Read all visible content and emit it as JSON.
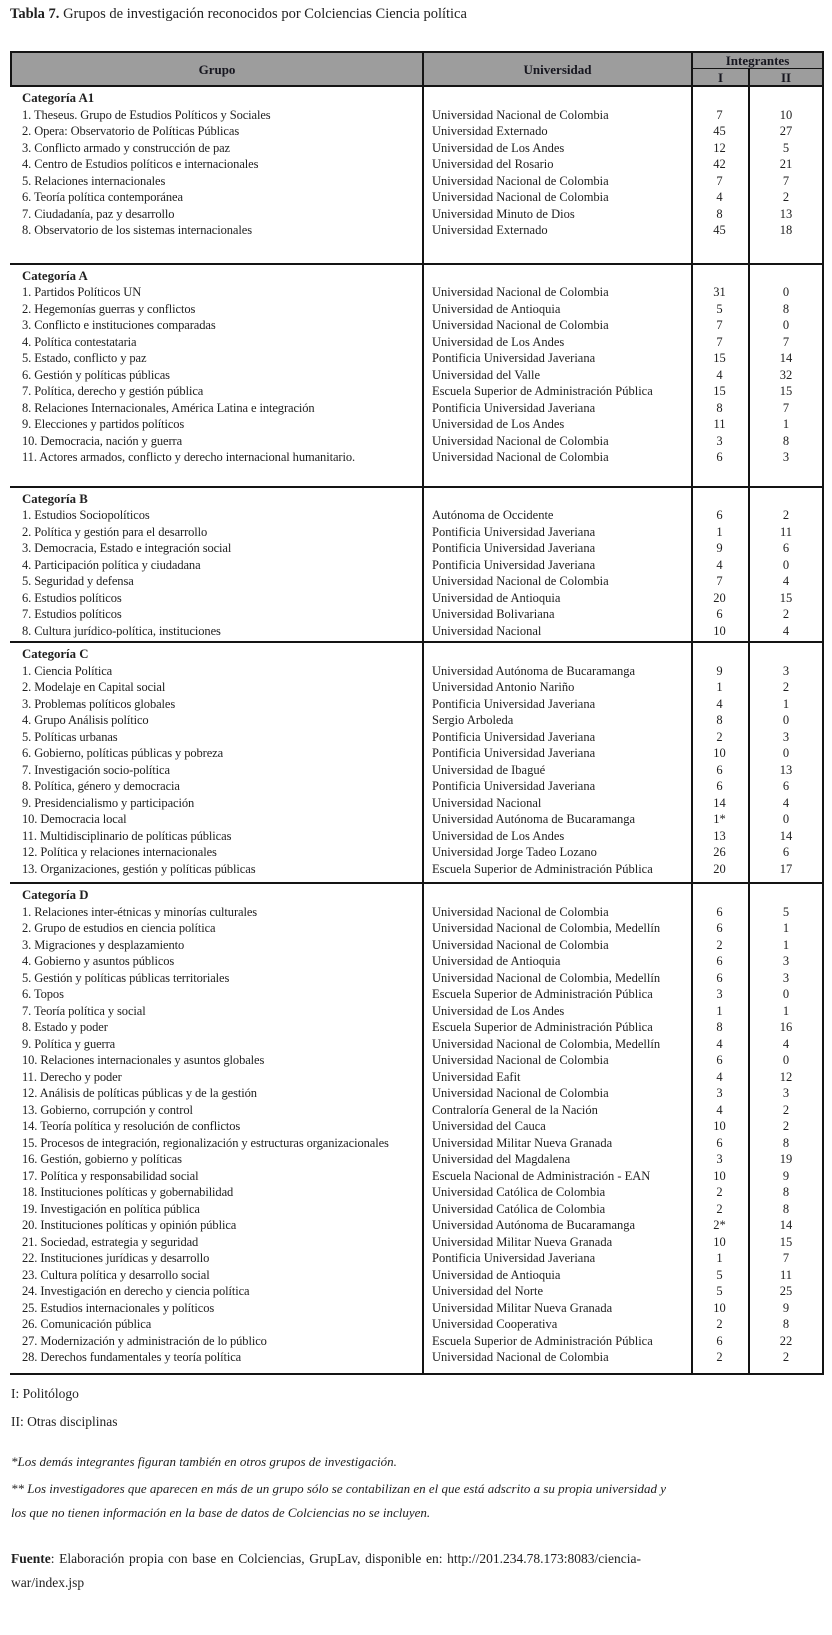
{
  "title": {
    "label": "Tabla 7.",
    "text": " Grupos de investigación reconocidos por Colciencias Ciencia política"
  },
  "table": {
    "headers": {
      "grupo": "Grupo",
      "universidad": "Universidad",
      "integrantes": "Integrantes",
      "col_i": "I",
      "col_ii": "II"
    },
    "sections": [
      {
        "name": "Categoría A1",
        "rows": [
          [
            "1.  Theseus. Grupo de Estudios Políticos y Sociales",
            "Universidad Nacional de Colombia",
            "7",
            "10"
          ],
          [
            "2. Opera: Observatorio de Políticas Públicas",
            "Universidad Externado",
            "45",
            "27"
          ],
          [
            "3. Conflicto armado y construcción de paz",
            "Universidad de Los Andes",
            "12",
            "5"
          ],
          [
            "4. Centro de Estudios políticos e internacionales",
            "Universidad del Rosario",
            "42",
            "21"
          ],
          [
            "5. Relaciones internacionales",
            "Universidad Nacional de Colombia",
            "7",
            "7"
          ],
          [
            "6. Teoría política contemporánea",
            "Universidad Nacional de Colombia",
            "4",
            "2"
          ],
          [
            "7. Ciudadanía, paz y desarrollo",
            "Universidad Minuto de Dios",
            "8",
            "13"
          ],
          [
            "8. Observatorio de los sistemas internacionales",
            "Universidad Externado",
            "45",
            "18"
          ]
        ]
      },
      {
        "name": "Categoría A",
        "rows": [
          [
            "1. Partidos Políticos UN",
            "Universidad Nacional de Colombia",
            "31",
            "0"
          ],
          [
            "2. Hegemonías guerras y conflictos",
            "Universidad de Antioquia",
            "5",
            "8"
          ],
          [
            "3. Conflicto e instituciones comparadas",
            "Universidad Nacional de Colombia",
            "7",
            "0"
          ],
          [
            "4. Política contestataria",
            "Universidad de Los Andes",
            "7",
            "7"
          ],
          [
            "5. Estado, conflicto y paz",
            "Pontificia Universidad Javeriana",
            "15",
            "14"
          ],
          [
            "6. Gestión y políticas públicas",
            "Universidad del Valle",
            "4",
            "32"
          ],
          [
            "7. Política, derecho y gestión pública",
            "Escuela Superior de Administración Pública",
            "15",
            "15"
          ],
          [
            "8. Relaciones Internacionales, América Latina e integración",
            "Pontificia Universidad Javeriana",
            "8",
            "7"
          ],
          [
            "9. Elecciones y partidos políticos",
            "Universidad de Los Andes",
            "11",
            "1"
          ],
          [
            "10. Democracia, nación y guerra",
            "Universidad Nacional de Colombia",
            "3",
            "8"
          ],
          [
            "11. Actores armados, conflicto y derecho internacional humanitario.",
            "Universidad Nacional de Colombia",
            "6",
            "3"
          ]
        ]
      },
      {
        "name": "Categoría B",
        "rows": [
          [
            "1. Estudios Sociopolíticos",
            "Autónoma de Occidente",
            "6",
            "2"
          ],
          [
            "2. Política y gestión para el desarrollo",
            "Pontificia Universidad Javeriana",
            "1",
            "11"
          ],
          [
            "3. Democracia, Estado e integración social",
            "Pontificia Universidad Javeriana",
            "9",
            "6"
          ],
          [
            "4. Participación política y ciudadana",
            "Pontificia Universidad Javeriana",
            "4",
            "0"
          ],
          [
            "5. Seguridad y defensa",
            "Universidad Nacional de Colombia",
            "7",
            "4"
          ],
          [
            "6. Estudios políticos",
            "Universidad de Antioquia",
            "20",
            "15"
          ],
          [
            "7. Estudios políticos",
            "Universidad Bolivariana",
            "6",
            "2"
          ],
          [
            "8. Cultura jurídico-política, instituciones",
            "Universidad Nacional",
            "10",
            "4"
          ]
        ]
      },
      {
        "name": "Categoría C",
        "rows": [
          [
            "1. Ciencia Política",
            "Universidad Autónoma de Bucaramanga",
            "9",
            "3"
          ],
          [
            "2. Modelaje en Capital social",
            "Universidad Antonio Nariño",
            "1",
            "2"
          ],
          [
            "3. Problemas políticos globales",
            "Pontificia Universidad Javeriana",
            "4",
            "1"
          ],
          [
            "4. Grupo Análisis político",
            "Sergio Arboleda",
            "8",
            "0"
          ],
          [
            "5. Políticas urbanas",
            "Pontificia Universidad Javeriana",
            "2",
            "3"
          ],
          [
            "6. Gobierno, políticas públicas y pobreza",
            "Pontificia Universidad Javeriana",
            "10",
            "0"
          ],
          [
            "7. Investigación socio-política",
            "Universidad de Ibagué",
            "6",
            "13"
          ],
          [
            "8. Política, género y democracia",
            "Pontificia Universidad Javeriana",
            "6",
            "6"
          ],
          [
            "9. Presidencialismo y participación",
            "Universidad Nacional",
            "14",
            "4"
          ],
          [
            "10. Democracia local",
            "Universidad Autónoma de Bucaramanga",
            "1*",
            "0"
          ],
          [
            "11. Multidisciplinario de políticas públicas",
            "Universidad de Los Andes",
            "13",
            "14"
          ],
          [
            "12. Política y relaciones internacionales",
            "Universidad Jorge Tadeo Lozano",
            "26",
            "6"
          ],
          [
            "13. Organizaciones, gestión y políticas públicas",
            "Escuela Superior de Administración Pública",
            "20",
            "17"
          ]
        ]
      },
      {
        "name": "Categoría D",
        "rows": [
          [
            "1. Relaciones inter-étnicas y minorías culturales",
            "Universidad Nacional de Colombia",
            "6",
            "5"
          ],
          [
            "2. Grupo de estudios en ciencia política",
            "Universidad Nacional de Colombia, Medellín",
            "6",
            "1"
          ],
          [
            "3. Migraciones y desplazamiento",
            "Universidad Nacional de Colombia",
            "2",
            "1"
          ],
          [
            "4. Gobierno y asuntos públicos",
            "Universidad de Antioquia",
            "6",
            "3"
          ],
          [
            "5. Gestión y políticas públicas territoriales",
            "Universidad Nacional de Colombia, Medellín",
            "6",
            "3"
          ],
          [
            "6. Topos",
            "Escuela Superior de Administración Pública",
            "3",
            "0"
          ],
          [
            "7. Teoría política y social",
            "Universidad de Los Andes",
            "1",
            "1"
          ],
          [
            "8. Estado y poder",
            "Escuela Superior de Administración Pública",
            "8",
            "16"
          ],
          [
            "9. Política y guerra",
            "Universidad Nacional de Colombia, Medellín",
            "4",
            "4"
          ],
          [
            "10. Relaciones internacionales y asuntos globales",
            "Universidad Nacional de Colombia",
            "6",
            "0"
          ],
          [
            "11. Derecho y poder",
            "Universidad Eafit",
            "4",
            "12"
          ],
          [
            "12. Análisis de políticas públicas y de la gestión",
            "Universidad Nacional de Colombia",
            "3",
            "3"
          ],
          [
            "13. Gobierno, corrupción y control",
            "Contraloría General de la Nación",
            "4",
            "2"
          ],
          [
            "14. Teoría política y resolución de conflictos",
            "Universidad del Cauca",
            "10",
            "2"
          ],
          [
            "15. Procesos de integración, regionalización y estructuras organizacionales",
            "Universidad Militar Nueva Granada",
            "6",
            "8"
          ],
          [
            "16. Gestión, gobierno y políticas",
            "Universidad del Magdalena",
            "3",
            "19"
          ],
          [
            "17. Política y responsabilidad social",
            "Escuela Nacional de Administración - EAN",
            "10",
            "9"
          ],
          [
            "18. Instituciones políticas y gobernabilidad",
            "Universidad Católica de Colombia",
            "2",
            "8"
          ],
          [
            "19. Investigación en política pública",
            "Universidad Católica de Colombia",
            "2",
            "8"
          ],
          [
            "20. Instituciones políticas y opinión pública",
            "Universidad Autónoma de Bucaramanga",
            "2*",
            "14"
          ],
          [
            "21. Sociedad, estrategia y seguridad",
            "Universidad Militar Nueva Granada",
            "10",
            "15"
          ],
          [
            "22. Instituciones jurídicas y desarrollo",
            "Pontificia Universidad Javeriana",
            "1",
            "7"
          ],
          [
            "23. Cultura política y desarrollo social",
            "Universidad de Antioquia",
            "5",
            "11"
          ],
          [
            "24. Investigación en derecho y ciencia política",
            "Universidad del Norte",
            "5",
            "25"
          ],
          [
            "25. Estudios internacionales y políticos",
            "Universidad Militar Nueva Granada",
            "10",
            "9"
          ],
          [
            "26. Comunicación pública",
            "Universidad Cooperativa",
            "2",
            "8"
          ],
          [
            "27. Modernización y administración de lo público",
            "Escuela Superior de Administración Pública",
            "6",
            "22"
          ],
          [
            "28. Derechos fundamentales y teoría política",
            "Universidad Nacional de Colombia",
            "2",
            "2"
          ]
        ]
      }
    ]
  },
  "legend": [
    "I: Politólogo",
    "II: Otras disciplinas"
  ],
  "notes": [
    "*Los demás integrantes figuran también en otros grupos de investigación.",
    "** Los investigadores que aparecen en más de un grupo sólo se contabilizan en el que está adscrito a su propia universidad y los que no tienen información en la base de datos de Colciencias no se incluyen."
  ],
  "source": {
    "label": "Fuente",
    "text": ": Elaboración propia con base en Colciencias, GrupLav, disponible en: http://201.234.78.173:8083/ciencia-war/index.jsp"
  }
}
